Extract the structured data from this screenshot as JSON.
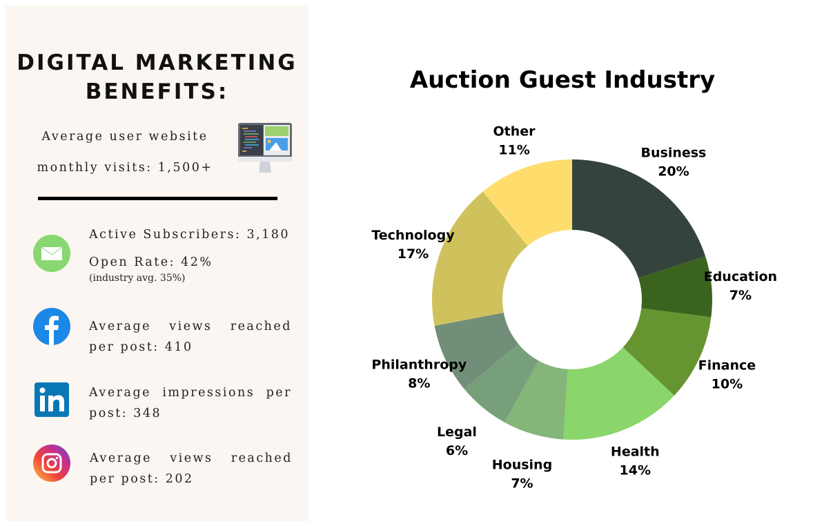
{
  "panel": {
    "title_line1": "DIGITAL MARKETING",
    "title_line2": "BENEFITS:",
    "visits_line1": "Average user website",
    "visits_line2": "monthly visits: 1,500+",
    "email": {
      "line1": "Active Subscribers: 3,180",
      "line2": "Open Rate: 42%",
      "line3": "(industry avg. 35%)"
    },
    "facebook": {
      "text": "Average views reached per post: 410"
    },
    "linkedin": {
      "text": "Average impressions per post: 348"
    },
    "instagram": {
      "text": "Average views reached per post: 202"
    }
  },
  "chart_data": {
    "type": "pie",
    "donut": true,
    "title": "Auction Guest Industry",
    "categories": [
      "Business",
      "Education",
      "Finance",
      "Health",
      "Housing",
      "Legal",
      "Philanthropy",
      "Technology",
      "Other"
    ],
    "values": [
      20,
      7,
      10,
      14,
      7,
      6,
      8,
      17,
      11
    ],
    "labels": [
      "20%",
      "7%",
      "10%",
      "14%",
      "7%",
      "6%",
      "8%",
      "17%",
      "11%"
    ],
    "colors": [
      "#34443c",
      "#3a631e",
      "#669430",
      "#8ad66a",
      "#84b579",
      "#77a07a",
      "#718f78",
      "#cfc25d",
      "#fedd6c"
    ]
  }
}
